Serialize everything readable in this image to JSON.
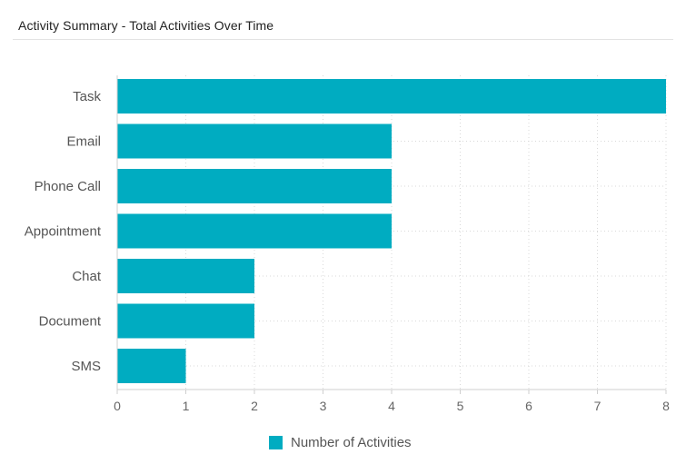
{
  "panel": {
    "title": "Activity Summary - Total Activities Over Time"
  },
  "chart_data": {
    "type": "bar",
    "orientation": "horizontal",
    "categories": [
      "Task",
      "Email",
      "Phone Call",
      "Appointment",
      "Chat",
      "Document",
      "SMS"
    ],
    "series": [
      {
        "name": "Number of Activities",
        "values": [
          8,
          4,
          4,
          4,
          2,
          2,
          1
        ],
        "color": "#00acc1"
      }
    ],
    "xlim": [
      0,
      8
    ],
    "x_ticks": [
      0,
      1,
      2,
      3,
      4,
      5,
      6,
      7,
      8
    ],
    "grid": true,
    "legend_position": "bottom-center"
  }
}
